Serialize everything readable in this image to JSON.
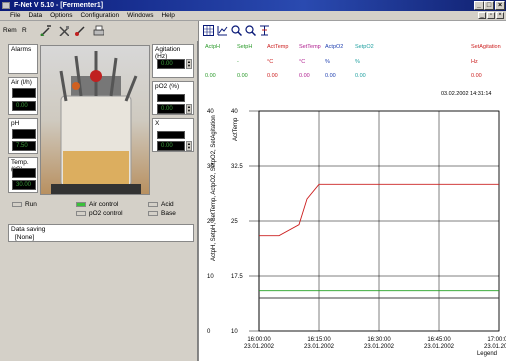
{
  "window": {
    "title": "F-Net V 5.10 - [Fermenter1]",
    "min": "_",
    "max": "□",
    "close": "×"
  },
  "menu": {
    "items": [
      "File",
      "Data",
      "Options",
      "Configuration",
      "Windows",
      "Help"
    ],
    "mdi": [
      "_",
      "▫",
      "×"
    ]
  },
  "toolbar": {
    "rem": "Rem",
    "r": "R"
  },
  "left": {
    "alarms": "Alarms",
    "air": {
      "label": "Air (l/h)",
      "value": "0.00"
    },
    "ph": {
      "label": "pH",
      "value": "7.50"
    },
    "temp": {
      "label": "Temp. (°C)",
      "value": "30.00"
    },
    "agitation": {
      "label": "Agitation (Hz)",
      "value": "0.00"
    },
    "po2": {
      "label": "pO2 (%)",
      "value": "0.00"
    },
    "x": {
      "label": "X",
      "value": "0.00"
    },
    "checks": {
      "run": "Run",
      "air_control": "Air control",
      "po2_control": "pO2 control",
      "acid": "Acid",
      "base": "Base"
    },
    "data_saving": {
      "label": "Data saving",
      "value": "[None]"
    }
  },
  "right": {
    "columns": [
      {
        "name": "ActpH",
        "unit": "",
        "value": "0.00",
        "color": "#2a9a2a"
      },
      {
        "name": "SetpH",
        "unit": "-",
        "value": "0.00",
        "color": "#2a9a2a"
      },
      {
        "name": "ActTemp",
        "unit": "°C",
        "value": "0.00",
        "color": "#cc2020"
      },
      {
        "name": "SetTemp",
        "unit": "°C",
        "value": "0.00",
        "color": "#b02090"
      },
      {
        "name": "ActpO2",
        "unit": "%",
        "value": "0.00",
        "color": "#2040b0"
      },
      {
        "name": "SetpO2",
        "unit": "%",
        "value": "0.00",
        "color": "#20a0a0"
      },
      {
        "name": "SetAgitation",
        "unit": "Hz",
        "value": "0.00",
        "color": "#cc2020"
      }
    ],
    "timestamp": "03.02.2002   14:31:14",
    "legend_label": "Legend"
  },
  "chart_data": {
    "type": "line",
    "ylabel_left": "ActpH, SetpH, SetTemp, ActpO2, SetpO2, SetAgitation",
    "ylabel_right": "ActTemp",
    "left_ticks": [
      "0",
      "10",
      "20",
      "30",
      "40"
    ],
    "right_ticks": [
      "10",
      "17.5",
      "25",
      "32.5",
      "40"
    ],
    "ylim": [
      10,
      40
    ],
    "x_ticks": [
      {
        "time": "16:00:00",
        "date": "23.01.2002"
      },
      {
        "time": "16:15:00",
        "date": "23.01.2002"
      },
      {
        "time": "16:30:00",
        "date": "23.01.2002"
      },
      {
        "time": "16:45:00",
        "date": "23.01.2002"
      },
      {
        "time": "17:00:00",
        "date": "23.01.2002"
      }
    ],
    "series": [
      {
        "name": "ActTemp",
        "color": "#cc2020",
        "x_min": [
          0,
          5,
          10,
          12,
          15,
          20,
          30,
          40,
          50,
          60
        ],
        "y": [
          23,
          23,
          24.5,
          28,
          30,
          30,
          30,
          30,
          30,
          30
        ]
      },
      {
        "name": "SetpO2",
        "color": "#20a020",
        "x_min": [
          0,
          60
        ],
        "y": [
          15.5,
          15.5
        ]
      },
      {
        "name": "ActpO2",
        "color": "#404040",
        "x_min": [
          0,
          60
        ],
        "y": [
          14.5,
          14.5
        ]
      }
    ]
  }
}
